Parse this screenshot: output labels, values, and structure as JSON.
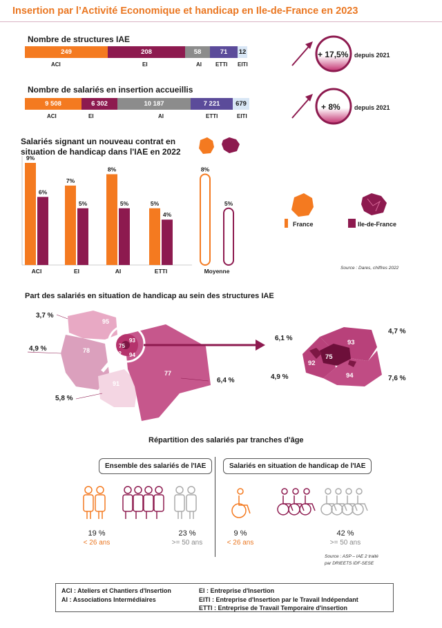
{
  "title": "Insertion par l’Activité Economique et handicap en Ile-de-France en 2023",
  "colors": {
    "aci": "#f47a20",
    "ei": "#8d1a4f",
    "ai": "#8c8c8c",
    "etti": "#5b4b9a",
    "eiti": "#d8e6f5",
    "france": "#f47a20",
    "idf": "#8d1a4f",
    "accent": "#ea7722"
  },
  "structures": {
    "label": "Nombre de structures IAE",
    "segments": [
      {
        "value": "249",
        "cat": "ACI"
      },
      {
        "value": "208",
        "cat": "EI"
      },
      {
        "value": "58",
        "cat": "AI"
      },
      {
        "value": "71",
        "cat": "ETTI"
      },
      {
        "value": "12",
        "cat": "EITI"
      }
    ],
    "change": "+ 17,5%",
    "since": "depuis 2021"
  },
  "salaries": {
    "label": "Nombre de salariés en insertion accueillis",
    "segments": [
      {
        "value": "9 508",
        "cat": "ACI"
      },
      {
        "value": "6 302",
        "cat": "EI"
      },
      {
        "value": "10 187",
        "cat": "AI"
      },
      {
        "value": "7 221",
        "cat": "ETTI"
      },
      {
        "value": "679",
        "cat": "EITI"
      }
    ],
    "change": "+ 8%",
    "since": "depuis 2021"
  },
  "chart_data": [
    {
      "type": "bar",
      "title": "Salariés signant un nouveau contrat en situation de handicap dans l'IAE en 2022",
      "categories": [
        "ACI",
        "EI",
        "AI",
        "ETTI",
        "Moyenne"
      ],
      "series": [
        {
          "name": "France",
          "values": [
            9,
            7,
            8,
            5,
            8
          ]
        },
        {
          "name": "Ile-de-France",
          "values": [
            6,
            5,
            5,
            4,
            5
          ]
        }
      ],
      "value_labels": {
        "France": [
          "9%",
          "7%",
          "8%",
          "5%",
          "8%"
        ],
        "Ile-de-France": [
          "6%",
          "5%",
          "5%",
          "4%",
          "5%"
        ]
      },
      "ylim": [
        0,
        9
      ],
      "legend_placement": "right",
      "source": "Source : Dares, chiffres 2022"
    }
  ],
  "handicap_map": {
    "title": "Part des salariés en situation de handicap au sein des structures IAE",
    "departments": [
      {
        "code": "95",
        "pct": "3,7 %"
      },
      {
        "code": "78",
        "pct": "4,9 %"
      },
      {
        "code": "91",
        "pct": "5,8 %"
      },
      {
        "code": "77",
        "pct": "6,4 %"
      },
      {
        "code": "75",
        "pct": "6,1 %"
      },
      {
        "code": "93",
        "pct": "4,7 %"
      },
      {
        "code": "92",
        "pct": "4,9 %"
      },
      {
        "code": "94",
        "pct": "7,6 %"
      }
    ]
  },
  "age": {
    "title": "Répartition des salariés par tranches d'âge",
    "left": {
      "box": "Ensemble des salariés de l'IAE",
      "young_pct": "19 %",
      "young_label": "< 26 ans",
      "old_pct": "23 %",
      "old_label": ">= 50 ans"
    },
    "right": {
      "box": "Salariés en situation de handicap de l'IAE",
      "young_pct": "9 %",
      "young_label": "< 26 ans",
      "old_pct": "42  %",
      "old_label": ">= 50 ans"
    },
    "source1": "Source : ASP – IAE 2 traité",
    "source2": "par DRIEETS IDF-SESE"
  },
  "footer": {
    "aci": "ACI : Ateliers et Chantiers d'Insertion",
    "ai": "AI : Associations Intermédiaires",
    "ei": "EI : Entreprise d'Insertion",
    "eiti": "EITI : Entreprise d'Insertion par le Travail Indépendant",
    "etti": "ETTI : Entreprise de Travail Temporaire d'insertion"
  }
}
